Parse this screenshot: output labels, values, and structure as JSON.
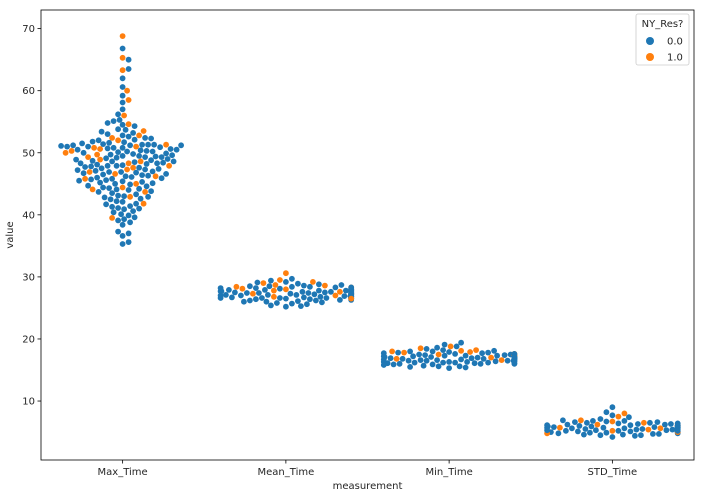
{
  "chart_data": {
    "type": "scatter",
    "subtype": "swarm",
    "title": "",
    "xlabel": "measurement",
    "ylabel": "value",
    "categories": [
      "Max_Time",
      "Mean_Time",
      "Min_Time",
      "STD_Time"
    ],
    "ylim": [
      0.5,
      73
    ],
    "yticks": [
      10,
      20,
      30,
      40,
      50,
      60,
      70
    ],
    "grid": false,
    "legend": {
      "title": "NY_Res?",
      "placement": "top-right",
      "entries": [
        {
          "label": "0.0",
          "color": "#1f77b4"
        },
        {
          "label": "1.0",
          "color": "#ff7f0e"
        }
      ]
    },
    "series": [
      {
        "name": "0.0",
        "color": "#1f77b4",
        "points": {
          "Max_Time": [
            35.3,
            36.6,
            37.3,
            38.4,
            39.1,
            39.6,
            40.1,
            40.6,
            41.0,
            41.4,
            41.8,
            42.1,
            42.5,
            42.8,
            43.1,
            43.5,
            43.8,
            44.1,
            44.4,
            44.7,
            45.0,
            45.2,
            45.4,
            45.6,
            45.9,
            46.1,
            46.3,
            46.6,
            46.8,
            47.0,
            47.2,
            47.5,
            47.7,
            47.9,
            48.1,
            48.3,
            48.5,
            48.7,
            48.9,
            49.1,
            49.3,
            49.5,
            49.7,
            49.9,
            50.1,
            50.3,
            50.5,
            50.7,
            50.9,
            51.1,
            51.3,
            51.5,
            51.7,
            52.0,
            52.3,
            52.6,
            53.0,
            53.4,
            53.8,
            54.3,
            54.8,
            55.3,
            56.2,
            57.0,
            58.1,
            59.2,
            60.6,
            62.0,
            63.5,
            65.0,
            66.8,
            35.6,
            37.0,
            38.8,
            39.3,
            39.9,
            40.4,
            40.9,
            41.3,
            41.7,
            42.2,
            42.6,
            43.0,
            43.3,
            43.7,
            44.0,
            44.3,
            44.6,
            44.9,
            45.3,
            45.5,
            45.8,
            46.0,
            46.2,
            46.5,
            46.7,
            46.9,
            47.1,
            47.4,
            47.6,
            47.8,
            48.0,
            48.2,
            48.4,
            48.6,
            48.8,
            49.0,
            49.2,
            49.4,
            49.6,
            49.8,
            50.0,
            50.2,
            50.4,
            50.6,
            50.8,
            51.0,
            51.2,
            51.4,
            51.6,
            51.8,
            52.1,
            52.4,
            52.8,
            53.2,
            53.7,
            54.5,
            55.1,
            45.1,
            46.4,
            47.3,
            48.6,
            49.5,
            50.5,
            51.2,
            51.3,
            51.2,
            47.9,
            44.2,
            42.9,
            41.1,
            48.3,
            50.8,
            49.3,
            45.7,
            46.9,
            50.2,
            51.0,
            51.3
          ],
          "Mean_Time": [
            25.2,
            25.4,
            25.6,
            25.8,
            25.9,
            26.0,
            26.1,
            26.2,
            26.3,
            26.4,
            26.5,
            26.5,
            26.6,
            26.6,
            26.7,
            26.7,
            26.8,
            26.8,
            26.9,
            26.9,
            27.0,
            27.0,
            27.1,
            27.1,
            27.2,
            27.2,
            27.3,
            27.3,
            27.4,
            27.4,
            27.5,
            27.5,
            27.6,
            27.6,
            27.7,
            27.7,
            27.8,
            27.8,
            27.9,
            27.9,
            28.0,
            28.1,
            28.2,
            28.3,
            28.4,
            28.5,
            28.7,
            28.9,
            29.1,
            29.4,
            29.7,
            25.3,
            25.7,
            26.0,
            26.3,
            26.6,
            26.9,
            27.2,
            27.5,
            27.8,
            28.1,
            28.4,
            28.8,
            29.2,
            26.2,
            26.8,
            27.4,
            28.0,
            27.0,
            27.6,
            26.5,
            27.3,
            27.9,
            26.7,
            27.1,
            27.7,
            28.3,
            26.4,
            27.0,
            27.5,
            28.6,
            27.2,
            26.6,
            27.8,
            28.2,
            27.4,
            26.9,
            27.3,
            28.5,
            26.6
          ],
          "Min_Time": [
            15.3,
            15.4,
            15.5,
            15.6,
            15.7,
            15.8,
            15.9,
            16.0,
            16.0,
            16.1,
            16.1,
            16.2,
            16.2,
            16.3,
            16.3,
            16.4,
            16.4,
            16.5,
            16.5,
            16.6,
            16.6,
            16.7,
            16.7,
            16.8,
            16.8,
            16.9,
            16.9,
            17.0,
            17.0,
            17.1,
            17.1,
            17.2,
            17.2,
            17.3,
            17.3,
            17.4,
            17.4,
            17.5,
            17.6,
            17.7,
            17.8,
            17.9,
            18.0,
            18.1,
            18.2,
            18.4,
            18.6,
            18.8,
            19.1,
            19.4,
            15.6,
            15.9,
            16.2,
            16.5,
            16.8,
            17.1,
            17.4,
            17.7,
            18.0,
            16.0,
            16.4,
            16.8,
            17.2,
            17.6,
            16.2,
            16.7,
            17.3,
            16.5,
            17.0,
            17.5,
            16.9,
            16.3,
            17.8,
            16.1,
            16.6
          ],
          "STD_Time": [
            4.2,
            4.4,
            4.5,
            4.6,
            4.7,
            4.8,
            4.9,
            5.0,
            5.0,
            5.1,
            5.1,
            5.2,
            5.2,
            5.3,
            5.3,
            5.4,
            5.4,
            5.5,
            5.5,
            5.6,
            5.6,
            5.7,
            5.7,
            5.8,
            5.8,
            5.9,
            5.9,
            6.0,
            6.0,
            6.1,
            6.1,
            6.2,
            6.3,
            6.4,
            6.5,
            6.6,
            6.7,
            6.8,
            6.9,
            7.1,
            7.4,
            7.7,
            8.2,
            9.0,
            4.5,
            4.8,
            5.1,
            5.4,
            5.7,
            6.0,
            6.3,
            6.6,
            4.9,
            5.3,
            5.7,
            6.1,
            6.5,
            5.0,
            5.5,
            6.0,
            5.2,
            5.8,
            6.2,
            5.6,
            4.7,
            6.4,
            5.1,
            5.9,
            4.6,
            6.8
          ]
        }
      },
      {
        "name": "1.0",
        "color": "#ff7f0e",
        "points": {
          "Max_Time": [
            39.5,
            41.8,
            42.9,
            43.7,
            44.4,
            45.0,
            45.8,
            46.6,
            47.3,
            47.9,
            48.6,
            49.3,
            50.0,
            50.6,
            51.3,
            52.0,
            52.8,
            53.5,
            54.6,
            56.0,
            58.5,
            60.0,
            63.3,
            65.3,
            68.8,
            46.2,
            47.6,
            48.9,
            50.3,
            51.0,
            49.7,
            44.1,
            52.4,
            46.9,
            48.3,
            50.8
          ],
          "Mean_Time": [
            26.5,
            27.0,
            27.4,
            27.8,
            28.1,
            28.4,
            28.7,
            29.0,
            29.5,
            30.6,
            27.2,
            28.0,
            27.6,
            28.6,
            26.8,
            27.9,
            28.3,
            27.3,
            29.2
          ],
          "Min_Time": [
            16.8,
            17.2,
            17.5,
            17.8,
            18.0,
            18.2,
            18.5,
            18.8,
            17.0,
            17.6,
            18.1,
            16.6,
            17.3,
            17.9
          ],
          "STD_Time": [
            4.8,
            5.2,
            5.6,
            5.9,
            6.2,
            6.5,
            6.9,
            7.5,
            8.0,
            5.0,
            5.4,
            6.0,
            6.7,
            5.7,
            6.3
          ]
        }
      }
    ]
  }
}
